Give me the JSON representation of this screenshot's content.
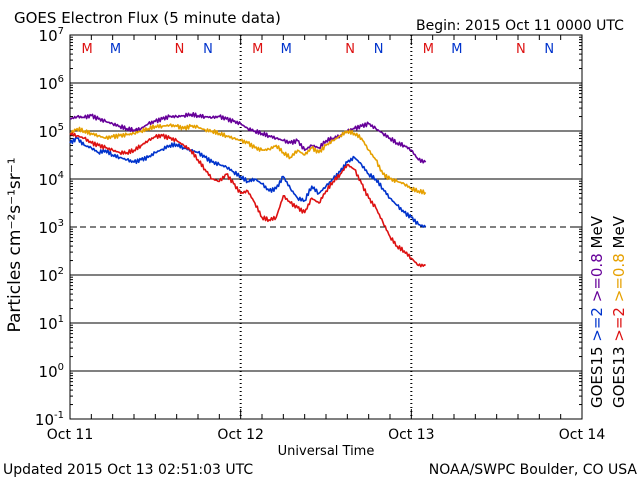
{
  "title": "GOES Electron Flux (5 minute data)",
  "begin": "Begin: 2015 Oct 11 0000 UTC",
  "updated": "Updated 2015 Oct 13 02:51:03 UTC",
  "credit": "NOAA/SWPC Boulder, CO USA",
  "colors": {
    "purple": "#660099",
    "orange": "#e6a000",
    "blue": "#0033cc",
    "red": "#dd1111"
  },
  "chart_data": {
    "type": "line",
    "title": "GOES Electron Flux (5 minute data)",
    "xlabel": "Universal Time",
    "ylabel": "Particles cm⁻²s⁻¹sr⁻¹",
    "xlim": [
      0,
      72
    ],
    "x_unit": "hours since 2015 Oct 11 0000 UTC",
    "ylim_log10": [
      -1,
      7
    ],
    "yscale": "log",
    "x_tick_labels": [
      {
        "x": 0,
        "label": "Oct 11"
      },
      {
        "x": 24,
        "label": "Oct 12"
      },
      {
        "x": 48,
        "label": "Oct 13"
      },
      {
        "x": 72,
        "label": "Oct 14"
      }
    ],
    "y_ticks": [
      {
        "exp": -1,
        "base": "10",
        "sup": "-1"
      },
      {
        "exp": 0,
        "base": "10",
        "sup": "0"
      },
      {
        "exp": 1,
        "base": "10",
        "sup": "1"
      },
      {
        "exp": 2,
        "base": "10",
        "sup": "2"
      },
      {
        "exp": 3,
        "base": "10",
        "sup": "3"
      },
      {
        "exp": 4,
        "base": "10",
        "sup": "4"
      },
      {
        "exp": 5,
        "base": "10",
        "sup": "5"
      },
      {
        "exp": 6,
        "base": "10",
        "sup": "6"
      },
      {
        "exp": 7,
        "base": "10",
        "sup": "7"
      }
    ],
    "gridlines_log10": [
      0,
      1,
      2,
      4,
      5,
      6
    ],
    "threshold": {
      "log10": 3,
      "style": "dashed"
    },
    "day_separators_x": [
      24,
      48
    ],
    "markers": [
      {
        "x": 2.4,
        "label": "M",
        "color": "#dd1111"
      },
      {
        "x": 6.4,
        "label": "M",
        "color": "#0033cc"
      },
      {
        "x": 15.4,
        "label": "N",
        "color": "#dd1111"
      },
      {
        "x": 19.4,
        "label": "N",
        "color": "#0033cc"
      },
      {
        "x": 26.4,
        "label": "M",
        "color": "#dd1111"
      },
      {
        "x": 30.4,
        "label": "M",
        "color": "#0033cc"
      },
      {
        "x": 39.4,
        "label": "N",
        "color": "#dd1111"
      },
      {
        "x": 43.4,
        "label": "N",
        "color": "#0033cc"
      },
      {
        "x": 50.4,
        "label": "M",
        "color": "#dd1111"
      },
      {
        "x": 54.4,
        "label": "M",
        "color": "#0033cc"
      },
      {
        "x": 63.4,
        "label": "N",
        "color": "#dd1111"
      },
      {
        "x": 67.4,
        "label": "N",
        "color": "#0033cc"
      }
    ],
    "legend": [
      {
        "label": "GOES15 >=2 >=0.8 MeV",
        "part1": "GOES15",
        "part2": ">=2",
        "part3": ">=0.8",
        "part4": "MeV",
        "part2_color": "#0033cc",
        "part3_color": "#660099"
      },
      {
        "label": "GOES13 >=2 >=0.8 MeV",
        "part1": "GOES13",
        "part2": ">=2",
        "part3": ">=0.8",
        "part4": "MeV",
        "part2_color": "#dd1111",
        "part3_color": "#e6a000"
      }
    ],
    "series": [
      {
        "name": "GOES15 >=0.8 MeV",
        "color": "#660099",
        "x": [
          0,
          1,
          2,
          3,
          4,
          5,
          6,
          7,
          8,
          9,
          10,
          11,
          12,
          13,
          14,
          15,
          16,
          17,
          18,
          19,
          20,
          21,
          22,
          23,
          24,
          25,
          26,
          27,
          28,
          29,
          30,
          31,
          32,
          33,
          34,
          35,
          36,
          37,
          38,
          39,
          40,
          41,
          42,
          43,
          44,
          45,
          46,
          47,
          48,
          49,
          50
        ],
        "log10_y": [
          5.25,
          5.3,
          5.28,
          5.32,
          5.25,
          5.2,
          5.15,
          5.1,
          5.05,
          5.02,
          5.05,
          5.15,
          5.2,
          5.25,
          5.3,
          5.3,
          5.32,
          5.35,
          5.32,
          5.3,
          5.28,
          5.3,
          5.25,
          5.2,
          5.15,
          5.05,
          5.0,
          4.95,
          4.9,
          4.85,
          4.8,
          4.75,
          4.8,
          4.6,
          4.7,
          4.65,
          4.8,
          4.85,
          4.9,
          5.0,
          5.05,
          5.1,
          5.15,
          5.05,
          4.95,
          4.85,
          4.75,
          4.7,
          4.6,
          4.4,
          4.35
        ]
      },
      {
        "name": "GOES13 >=0.8 MeV",
        "color": "#e6a000",
        "x": [
          0,
          1,
          2,
          3,
          4,
          5,
          6,
          7,
          8,
          9,
          10,
          11,
          12,
          13,
          14,
          15,
          16,
          17,
          18,
          19,
          20,
          21,
          22,
          23,
          24,
          25,
          26,
          27,
          28,
          29,
          30,
          31,
          32,
          33,
          34,
          35,
          36,
          37,
          38,
          39,
          40,
          41,
          42,
          43,
          44,
          45,
          46,
          47,
          48,
          49,
          50
        ],
        "log10_y": [
          4.95,
          5.05,
          5.0,
          4.95,
          4.9,
          4.85,
          4.88,
          4.9,
          4.92,
          4.95,
          5.0,
          5.05,
          5.1,
          5.1,
          5.12,
          5.1,
          5.05,
          5.1,
          5.08,
          5.02,
          5.0,
          4.95,
          4.9,
          4.85,
          4.8,
          4.75,
          4.65,
          4.6,
          4.62,
          4.7,
          4.55,
          4.45,
          4.6,
          4.5,
          4.65,
          4.55,
          4.7,
          4.8,
          4.9,
          5.0,
          4.95,
          4.85,
          4.6,
          4.4,
          4.1,
          4.0,
          3.95,
          3.9,
          3.8,
          3.75,
          3.72
        ]
      },
      {
        "name": "GOES15 >=2 MeV",
        "color": "#0033cc",
        "x": [
          0,
          1,
          2,
          3,
          4,
          5,
          6,
          7,
          8,
          9,
          10,
          11,
          12,
          13,
          14,
          15,
          16,
          17,
          18,
          19,
          20,
          21,
          22,
          23,
          24,
          25,
          26,
          27,
          28,
          29,
          30,
          31,
          32,
          33,
          34,
          35,
          36,
          37,
          38,
          39,
          40,
          41,
          42,
          43,
          44,
          45,
          46,
          47,
          48,
          49,
          50
        ],
        "log10_y": [
          4.75,
          4.85,
          4.7,
          4.65,
          4.55,
          4.6,
          4.5,
          4.45,
          4.4,
          4.35,
          4.4,
          4.45,
          4.55,
          4.62,
          4.7,
          4.72,
          4.65,
          4.6,
          4.55,
          4.45,
          4.35,
          4.3,
          4.25,
          4.15,
          4.05,
          3.95,
          4.0,
          3.9,
          3.75,
          3.8,
          4.05,
          3.8,
          3.6,
          3.55,
          3.85,
          3.7,
          3.85,
          4.0,
          4.15,
          4.35,
          4.45,
          4.3,
          4.1,
          4.0,
          3.8,
          3.6,
          3.45,
          3.3,
          3.2,
          3.05,
          3.0
        ]
      },
      {
        "name": "GOES13 >=2 MeV",
        "color": "#dd1111",
        "x": [
          0,
          1,
          2,
          3,
          4,
          5,
          6,
          7,
          8,
          9,
          10,
          11,
          12,
          13,
          14,
          15,
          16,
          17,
          18,
          19,
          20,
          21,
          22,
          23,
          24,
          25,
          26,
          27,
          28,
          29,
          30,
          31,
          32,
          33,
          34,
          35,
          36,
          37,
          38,
          39,
          40,
          41,
          42,
          43,
          44,
          45,
          46,
          47,
          48,
          49,
          50
        ],
        "log10_y": [
          4.95,
          4.9,
          4.85,
          4.75,
          4.7,
          4.65,
          4.6,
          4.55,
          4.55,
          4.6,
          4.7,
          4.8,
          4.88,
          4.9,
          4.85,
          4.8,
          4.7,
          4.6,
          4.4,
          4.2,
          4.0,
          3.95,
          4.1,
          3.9,
          3.7,
          3.75,
          3.5,
          3.2,
          3.15,
          3.2,
          3.65,
          3.5,
          3.4,
          3.3,
          3.6,
          3.5,
          3.75,
          3.95,
          4.1,
          4.3,
          4.2,
          3.9,
          3.6,
          3.4,
          3.1,
          2.8,
          2.6,
          2.5,
          2.35,
          2.2,
          2.2
        ]
      }
    ]
  }
}
